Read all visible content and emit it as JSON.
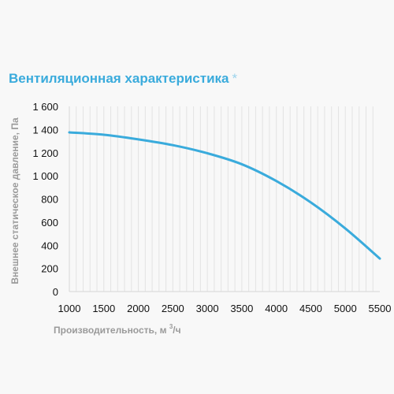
{
  "header": {
    "title": "Вентиляционная характеристика",
    "title_marker": "*"
  },
  "colors": {
    "curve": "#3aabdc",
    "title": "#3aabdc",
    "grid": "#e3e3e3",
    "axis_title": "#9a9a9a"
  },
  "chart_data": {
    "type": "line",
    "title": "Вентиляционная характеристика",
    "xlabel": "Производительность, м³/ч",
    "ylabel": "Внешнее статическое давление, Па",
    "xlim": [
      1000,
      5500
    ],
    "ylim": [
      0,
      1600
    ],
    "x_ticks": [
      1000,
      1500,
      2000,
      2500,
      3000,
      3500,
      4000,
      4500,
      5000,
      5500
    ],
    "x_tick_labels": [
      "1000",
      "1500",
      "2000",
      "2500",
      "3000",
      "3500",
      "4000",
      "4500",
      "5000",
      "5500"
    ],
    "y_ticks": [
      0,
      200,
      400,
      600,
      800,
      1000,
      1200,
      1400,
      1600
    ],
    "y_tick_labels": [
      "0",
      "200",
      "400",
      "600",
      "800",
      "1 000",
      "1 200",
      "1 400",
      "1 600"
    ],
    "grid": "vertical",
    "legend": "none",
    "series": [
      {
        "x": [
          1000,
          1500,
          2000,
          2500,
          3000,
          3500,
          4000,
          4500,
          5000,
          5500
        ],
        "y": [
          1375,
          1355,
          1315,
          1265,
          1195,
          1100,
          955,
          770,
          545,
          285
        ]
      }
    ]
  }
}
